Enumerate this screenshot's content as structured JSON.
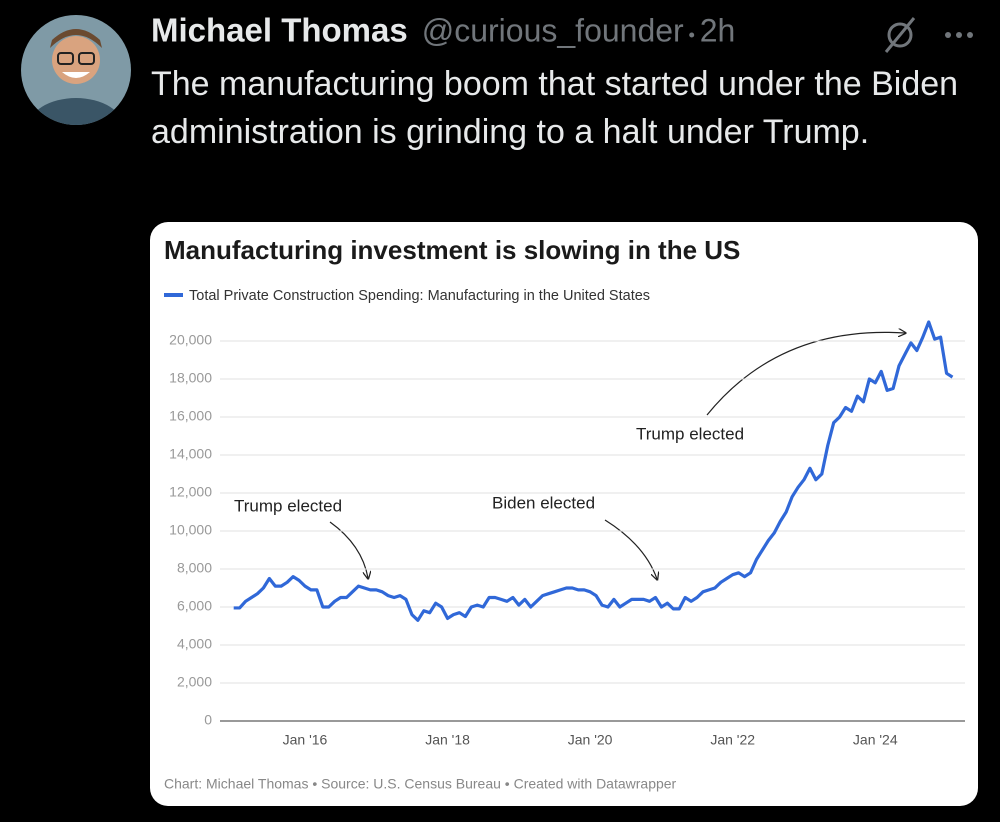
{
  "tweet": {
    "name": "Michael Thomas",
    "handle": "@curious_founder",
    "time": "2h",
    "text": "The manufacturing boom that started under the Biden administration is grinding to a halt under Trump."
  },
  "chart_data": {
    "type": "line",
    "title": "Manufacturing investment is slowing in the US",
    "source": "Chart: Michael Thomas • Source: U.S. Census Bureau • Created with Datawrapper",
    "categories": [
      null,
      null,
      null,
      null,
      null,
      null,
      null,
      null,
      null,
      null,
      null,
      null,
      "Jan '16",
      null,
      null,
      null,
      null,
      null,
      null,
      null,
      null,
      null,
      null,
      null,
      null,
      null,
      null,
      null,
      null,
      null,
      null,
      null,
      null,
      null,
      null,
      null,
      "Jan '18",
      null,
      null,
      null,
      null,
      null,
      null,
      null,
      null,
      null,
      null,
      null,
      null,
      null,
      null,
      null,
      null,
      null,
      null,
      null,
      null,
      null,
      null,
      null,
      "Jan '20",
      null,
      null,
      null,
      null,
      null,
      null,
      null,
      null,
      null,
      null,
      null,
      null,
      null,
      null,
      null,
      null,
      null,
      null,
      null,
      null,
      null,
      null,
      null,
      "Jan '22",
      null,
      null,
      null,
      null,
      null,
      null,
      null,
      null,
      null,
      null,
      null,
      null,
      null,
      null,
      null,
      null,
      null,
      null,
      null,
      null,
      null,
      null,
      null,
      "Jan '24",
      null,
      null,
      null,
      null,
      null,
      null,
      null,
      null,
      null,
      null,
      null,
      null,
      null
    ],
    "series": [
      {
        "name": "Total Private Construction Spending: Manufacturing in the United States",
        "color": "#3068d8",
        "values": [
          5950,
          5950,
          6300,
          6500,
          6700,
          7000,
          7500,
          7100,
          7100,
          7300,
          7600,
          7400,
          7100,
          6900,
          6900,
          6000,
          6000,
          6300,
          6500,
          6500,
          6800,
          7100,
          7000,
          6900,
          6900,
          6800,
          6600,
          6500,
          6600,
          6400,
          5600,
          5300,
          5800,
          5700,
          6200,
          6000,
          5400,
          5600,
          5700,
          5500,
          6000,
          6100,
          6000,
          6500,
          6500,
          6400,
          6300,
          6500,
          6100,
          6400,
          6000,
          6300,
          6600,
          6700,
          6800,
          6900,
          7000,
          7000,
          6900,
          6900,
          6800,
          6600,
          6100,
          6000,
          6400,
          6000,
          6200,
          6400,
          6400,
          6400,
          6300,
          6500,
          6000,
          6200,
          5900,
          5900,
          6500,
          6300,
          6500,
          6800,
          6900,
          7000,
          7300,
          7500,
          7700,
          7800,
          7600,
          7800,
          8500,
          9000,
          9500,
          9900,
          10500,
          11000,
          11800,
          12300,
          12700,
          13300,
          12700,
          13000,
          14500,
          15700,
          16000,
          16500,
          16300,
          17100,
          16800,
          18000,
          17800,
          18400,
          17400,
          17500,
          18700,
          19300,
          19900,
          19500,
          20200,
          21000,
          20100,
          20200,
          18300,
          18100
        ]
      }
    ],
    "ylim": [
      0,
      20000
    ],
    "yticks": [
      0,
      {
        "value": 2000,
        "label": "2,000"
      },
      {
        "value": 4000,
        "label": "4,000"
      },
      {
        "value": 6000,
        "label": "6,000"
      },
      {
        "value": 8000,
        "label": "8,000"
      },
      {
        "value": 10000,
        "label": "10,000"
      },
      {
        "value": 12000,
        "label": "12,000"
      },
      {
        "value": 14000,
        "label": "14,000"
      },
      {
        "value": 16000,
        "label": "16,000"
      },
      {
        "value": 18000,
        "label": "18,000"
      },
      {
        "value": 20000,
        "label": "20,000"
      }
    ],
    "grid": true,
    "annotations": [
      "Trump elected",
      "Biden elected",
      "Trump elected"
    ]
  }
}
